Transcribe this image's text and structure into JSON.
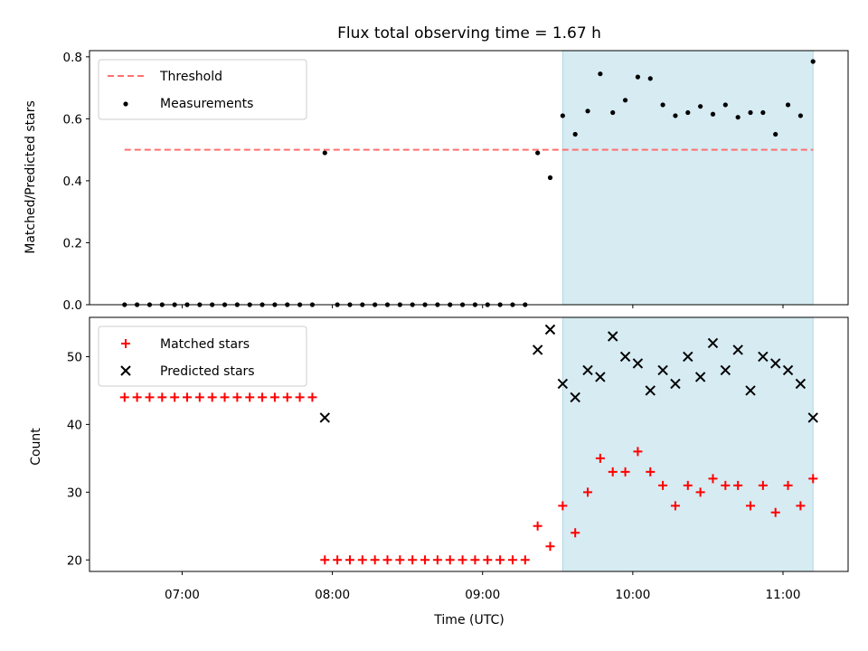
{
  "title": "Flux total observing time = 1.67 h",
  "colors": {
    "threshold": "#ff7070",
    "shade": "#add8e6",
    "measurement": "#000000",
    "matched": "#ff0000",
    "predicted": "#000000"
  },
  "chart_data": [
    {
      "type": "scatter",
      "ylabel": "Matched/Predicted stars",
      "ylim": [
        0,
        0.82
      ],
      "yticks": [
        {
          "value": 0.0,
          "label": "0.0"
        },
        {
          "value": 0.2,
          "label": "0.2"
        },
        {
          "value": 0.4,
          "label": "0.4"
        },
        {
          "value": 0.6,
          "label": "0.6"
        },
        {
          "value": 0.8,
          "label": "0.8"
        }
      ],
      "legend": {
        "placement": "top-left",
        "entries": [
          "Threshold",
          "Measurements"
        ]
      },
      "shaded_span": {
        "from": "09:32",
        "to": "11:12"
      },
      "threshold": {
        "name": "Threshold",
        "value": 0.5,
        "from": "06:37",
        "to": "11:12",
        "style": "dashed"
      },
      "series": [
        {
          "name": "Measurements",
          "marker": "dot",
          "x": [
            "06:37",
            "06:42",
            "06:47",
            "06:52",
            "06:57",
            "07:02",
            "07:07",
            "07:12",
            "07:17",
            "07:22",
            "07:27",
            "07:32",
            "07:37",
            "07:42",
            "07:47",
            "07:52",
            "07:57",
            "08:02",
            "08:07",
            "08:12",
            "08:17",
            "08:22",
            "08:27",
            "08:32",
            "08:37",
            "08:42",
            "08:47",
            "08:52",
            "08:57",
            "09:02",
            "09:07",
            "09:12",
            "09:17",
            "09:22",
            "09:27",
            "09:32",
            "09:37",
            "09:42",
            "09:47",
            "09:52",
            "09:57",
            "10:02",
            "10:07",
            "10:12",
            "10:17",
            "10:22",
            "10:27",
            "10:32",
            "10:37",
            "10:42",
            "10:47",
            "10:52",
            "10:57",
            "11:02",
            "11:07",
            "11:12"
          ],
          "y": [
            0,
            0,
            0,
            0,
            0,
            0,
            0,
            0,
            0,
            0,
            0,
            0,
            0,
            0,
            0,
            0,
            0.49,
            0,
            0,
            0,
            0,
            0,
            0,
            0,
            0,
            0,
            0,
            0,
            0,
            0,
            0,
            0,
            0,
            0.49,
            0.41,
            0.61,
            0.55,
            0.625,
            0.745,
            0.62,
            0.66,
            0.735,
            0.73,
            0.645,
            0.61,
            0.62,
            0.64,
            0.615,
            0.645,
            0.605,
            0.62,
            0.62,
            0.55,
            0.645,
            0.61,
            0.785
          ]
        }
      ]
    },
    {
      "type": "scatter",
      "xlabel": "Time (UTC)",
      "ylabel": "Count",
      "ylim": [
        18.3,
        55.8
      ],
      "yticks": [
        {
          "value": 20,
          "label": "20"
        },
        {
          "value": 30,
          "label": "30"
        },
        {
          "value": 40,
          "label": "40"
        },
        {
          "value": 50,
          "label": "50"
        }
      ],
      "xlim": [
        "06:23",
        "11:26"
      ],
      "xticks": [
        {
          "value": "07:00",
          "label": "07:00"
        },
        {
          "value": "08:00",
          "label": "08:00"
        },
        {
          "value": "09:00",
          "label": "09:00"
        },
        {
          "value": "10:00",
          "label": "10:00"
        },
        {
          "value": "11:00",
          "label": "11:00"
        }
      ],
      "legend": {
        "placement": "top-left",
        "entries": [
          "Matched stars",
          "Predicted stars"
        ]
      },
      "shaded_span": {
        "from": "09:32",
        "to": "11:12"
      },
      "series": [
        {
          "name": "Matched stars",
          "marker": "plus",
          "x": [
            "06:37",
            "06:42",
            "06:47",
            "06:52",
            "06:57",
            "07:02",
            "07:07",
            "07:12",
            "07:17",
            "07:22",
            "07:27",
            "07:32",
            "07:37",
            "07:42",
            "07:47",
            "07:52",
            "07:57",
            "08:02",
            "08:07",
            "08:12",
            "08:17",
            "08:22",
            "08:27",
            "08:32",
            "08:37",
            "08:42",
            "08:47",
            "08:52",
            "08:57",
            "09:02",
            "09:07",
            "09:12",
            "09:17",
            "09:22",
            "09:27",
            "09:32",
            "09:37",
            "09:42",
            "09:47",
            "09:52",
            "09:57",
            "10:02",
            "10:07",
            "10:12",
            "10:17",
            "10:22",
            "10:27",
            "10:32",
            "10:37",
            "10:42",
            "10:47",
            "10:52",
            "10:57",
            "11:02",
            "11:07",
            "11:12"
          ],
          "y": [
            44,
            44,
            44,
            44,
            44,
            44,
            44,
            44,
            44,
            44,
            44,
            44,
            44,
            44,
            44,
            44,
            20,
            20,
            20,
            20,
            20,
            20,
            20,
            20,
            20,
            20,
            20,
            20,
            20,
            20,
            20,
            20,
            20,
            25,
            22,
            28,
            24,
            30,
            35,
            33,
            33,
            36,
            33,
            31,
            28,
            31,
            30,
            32,
            31,
            31,
            28,
            31,
            27,
            31,
            28,
            32
          ]
        },
        {
          "name": "Predicted stars",
          "marker": "x",
          "x": [
            "07:57",
            "09:22",
            "09:27",
            "09:32",
            "09:37",
            "09:42",
            "09:47",
            "09:52",
            "09:57",
            "10:02",
            "10:07",
            "10:12",
            "10:17",
            "10:22",
            "10:27",
            "10:32",
            "10:37",
            "10:42",
            "10:47",
            "10:52",
            "10:57",
            "11:02",
            "11:07",
            "11:12"
          ],
          "y": [
            41,
            51,
            54,
            46,
            44,
            48,
            47,
            53,
            50,
            49,
            45,
            48,
            46,
            50,
            47,
            52,
            48,
            51,
            45,
            50,
            49,
            48,
            46,
            41
          ]
        }
      ]
    }
  ]
}
